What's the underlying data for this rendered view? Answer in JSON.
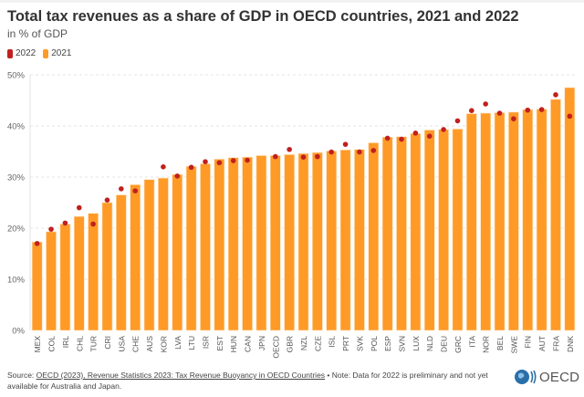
{
  "chart_data": {
    "type": "bar",
    "title": "Total tax revenues as a share of GDP in OECD countries, 2021 and 2022",
    "subtitle": "in % of GDP",
    "categories": [
      "MEX",
      "COL",
      "IRL",
      "CHL",
      "TUR",
      "CRI",
      "USA",
      "CHE",
      "AUS",
      "KOR",
      "LVA",
      "LTU",
      "ISR",
      "EST",
      "HUN",
      "CAN",
      "JPN",
      "OECD",
      "GBR",
      "NZL",
      "CZE",
      "ISL",
      "PRT",
      "SVK",
      "POL",
      "ESP",
      "SVN",
      "LUX",
      "NLD",
      "DEU",
      "GRC",
      "ITA",
      "NOR",
      "BEL",
      "SWE",
      "FIN",
      "AUT",
      "FRA",
      "DNK"
    ],
    "series": [
      {
        "name": "2021",
        "type": "bar",
        "color": "#ff9a27",
        "values": [
          17.3,
          19.3,
          20.8,
          22.3,
          22.9,
          25.0,
          26.5,
          28.5,
          29.5,
          29.8,
          30.5,
          32.1,
          32.6,
          33.5,
          33.8,
          33.9,
          34.2,
          34.2,
          34.4,
          34.6,
          34.8,
          35.1,
          35.3,
          35.4,
          36.7,
          37.8,
          37.9,
          38.5,
          39.2,
          39.3,
          39.4,
          42.4,
          42.5,
          42.6,
          42.7,
          43.2,
          43.3,
          45.2,
          47.5
        ]
      },
      {
        "name": "2022",
        "type": "dot",
        "color": "#c0201e",
        "values": [
          17.0,
          19.8,
          21.0,
          24.0,
          20.8,
          25.5,
          27.7,
          27.3,
          null,
          32.0,
          30.2,
          31.9,
          33.0,
          32.8,
          33.2,
          33.3,
          null,
          34.0,
          35.4,
          33.9,
          34.0,
          34.9,
          36.4,
          34.9,
          35.2,
          37.6,
          37.4,
          38.6,
          38.0,
          39.3,
          41.0,
          43.0,
          44.3,
          42.5,
          41.4,
          43.1,
          43.2,
          46.1,
          41.9
        ]
      }
    ],
    "legend": [
      "2022",
      "2021"
    ],
    "legend_placement": "top-left",
    "ylim": [
      0,
      50
    ],
    "yticks": [
      "0%",
      "10%",
      "20%",
      "30%",
      "40%",
      "50%"
    ],
    "grid": true,
    "xlabel": "",
    "ylabel": ""
  },
  "footer": {
    "source_prefix": "Source: ",
    "source_link": "OECD (2023), Revenue Statistics 2023: Tax Revenue Buoyancy in OECD Countries",
    "note": " • Note: Data for 2022 is preliminary and not yet available for Australia and Japan."
  },
  "logo": {
    "text": "OECD"
  }
}
